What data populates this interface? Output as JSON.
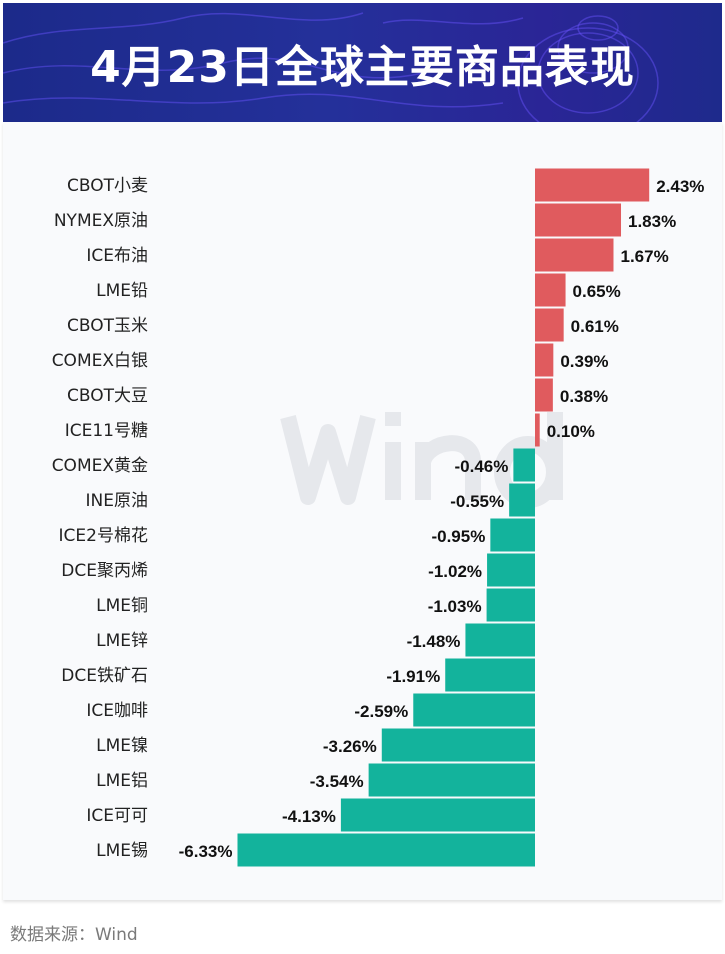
{
  "header": {
    "title": "4月23日全球主要商品表现"
  },
  "footer": {
    "source": "数据来源：Wind"
  },
  "watermark": "Wind",
  "colors": {
    "positive": "#e05b5e",
    "negative": "#13b39c",
    "header_bg": "#222e92"
  },
  "chart_data": {
    "type": "bar",
    "orientation": "horizontal",
    "title": "4月23日全球主要商品表现",
    "xlabel": "",
    "ylabel": "",
    "unit": "%",
    "categories": [
      "CBOT小麦",
      "NYMEX原油",
      "ICE布油",
      "LME铅",
      "CBOT玉米",
      "COMEX白银",
      "CBOT大豆",
      "ICE11号糖",
      "COMEX黄金",
      "INE原油",
      "ICE2号棉花",
      "DCE聚丙烯",
      "LME铜",
      "LME锌",
      "DCE铁矿石",
      "ICE咖啡",
      "LME镍",
      "LME铝",
      "ICE可可",
      "LME锡"
    ],
    "values": [
      2.43,
      1.83,
      1.67,
      0.65,
      0.61,
      0.39,
      0.38,
      0.1,
      -0.46,
      -0.55,
      -0.95,
      -1.02,
      -1.03,
      -1.48,
      -1.91,
      -2.59,
      -3.26,
      -3.54,
      -4.13,
      -6.33
    ],
    "labels": [
      "2.43%",
      "1.83%",
      "1.67%",
      "0.65%",
      "0.61%",
      "0.39%",
      "0.38%",
      "0.10%",
      "-0.46%",
      "-0.55%",
      "-0.95%",
      "-1.02%",
      "-1.03%",
      "-1.48%",
      "-1.91%",
      "-2.59%",
      "-3.26%",
      "-3.54%",
      "-4.13%",
      "-6.33%"
    ],
    "xlim": [
      -6.33,
      2.43
    ],
    "grid": false,
    "legend": "none"
  }
}
